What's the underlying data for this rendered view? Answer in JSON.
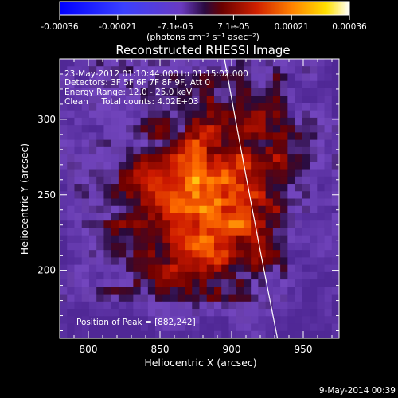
{
  "chart_data": {
    "type": "heatmap",
    "title": "Reconstructed RHESSI Image",
    "xlabel": "Heliocentric X (arcsec)",
    "ylabel": "Heliocentric Y (arcsec)",
    "xlim": [
      780,
      975
    ],
    "ylim": [
      155,
      340
    ],
    "x_ticks": [
      800,
      850,
      900,
      950
    ],
    "y_ticks": [
      200,
      250,
      300
    ],
    "colorbar": {
      "ticks": [
        "-0.00036",
        "-0.00021",
        "-7.1e-05",
        "7.1e-05",
        "0.00021",
        "0.00036"
      ],
      "range": [
        -0.00036,
        0.00036
      ],
      "unit_label": "(photons cm⁻² s⁻¹ asec⁻²)"
    },
    "annotations": [
      "23-May-2012 01:10:44.000 to 01:15:02.000",
      "Detectors: 3F 5F 6F 7F 8F 9F, Att 0",
      "Energy Range: 12.0 - 25.0 keV",
      "Clean     Total counts: 4.02E+03"
    ],
    "peak_label": "Position of Peak = [882,242]",
    "peak": [
      882,
      242
    ],
    "limb_arc": {
      "x": [
        895,
        918,
        932
      ],
      "y": [
        340,
        250,
        155
      ]
    },
    "colors": {
      "background": "#000000",
      "axis": "#ffffff",
      "neg_low": "#0000ff",
      "neg_high": "#6a3ac0",
      "pos_low": "#a00000",
      "pos_high": "#ffffff"
    }
  },
  "footer": {
    "timestamp": "9-May-2014 00:39"
  }
}
